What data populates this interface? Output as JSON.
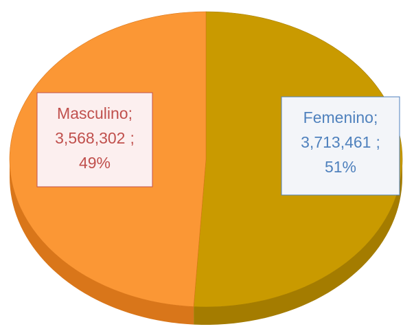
{
  "chart_data": {
    "type": "pie",
    "three_d": true,
    "categories": [
      "Masculino",
      "Femenino"
    ],
    "values": [
      3568302,
      3713461
    ],
    "value_labels": [
      "3,568,302",
      "3,713,461"
    ],
    "percentages": [
      49,
      51
    ],
    "percentage_labels": [
      "49%",
      "51%"
    ],
    "separator": ";",
    "colors": [
      "#fb9735",
      "#c99a00"
    ],
    "side_colors": [
      "#d9761a",
      "#a47c00"
    ],
    "label_text_colors": [
      "#c0504d",
      "#4f81bd"
    ],
    "label_fills": [
      "#fcefef",
      "#f3f5f9"
    ],
    "label_borders": [
      "#c0504d",
      "#4f81bd"
    ]
  }
}
